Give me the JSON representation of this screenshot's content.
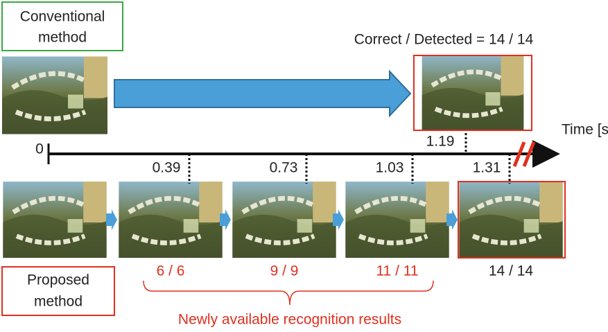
{
  "conventional": {
    "label": [
      "Conventional",
      "method"
    ],
    "summary": "Correct / Detected = 14 / 14",
    "time": "1.19"
  },
  "timeline": {
    "origin": "0",
    "axis_label": "Time [s]"
  },
  "proposed": {
    "label": [
      "Proposed",
      "method"
    ],
    "steps": [
      {
        "time": "0.39",
        "result": "6 / 6"
      },
      {
        "time": "0.73",
        "result": "9 / 9"
      },
      {
        "time": "1.03",
        "result": "11 / 11"
      },
      {
        "time": "1.31",
        "result": "14 / 14"
      }
    ]
  },
  "brace_label": "Newly available recognition results"
}
